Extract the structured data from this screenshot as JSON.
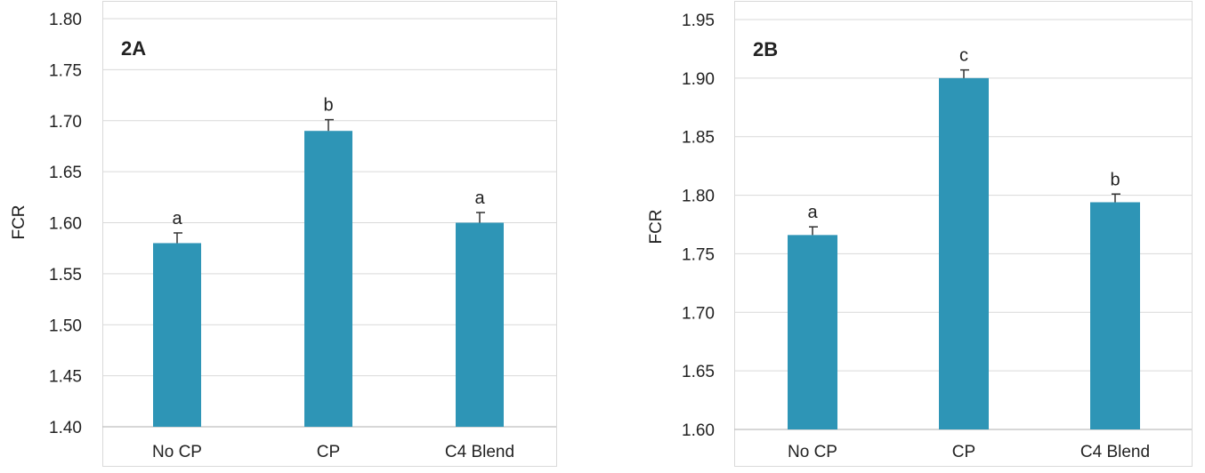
{
  "chart_data": [
    {
      "type": "bar",
      "panel_label": "2A",
      "ylabel": "FCR",
      "xlabel": "",
      "categories": [
        "No CP",
        "CP",
        "C4 Blend"
      ],
      "values": [
        1.58,
        1.69,
        1.6
      ],
      "errors": [
        0.01,
        0.011,
        0.01
      ],
      "significance": [
        "a",
        "b",
        "a"
      ],
      "ylim": [
        1.4,
        1.8
      ],
      "yticks": [
        "1.40",
        "1.45",
        "1.50",
        "1.55",
        "1.60",
        "1.65",
        "1.70",
        "1.75",
        "1.80"
      ],
      "bar_color": "#2e95b6",
      "grid": true,
      "legend": "none"
    },
    {
      "type": "bar",
      "panel_label": "2B",
      "ylabel": "FCR",
      "xlabel": "",
      "categories": [
        "No CP",
        "CP",
        "C4 Blend"
      ],
      "values": [
        1.766,
        1.9,
        1.794
      ],
      "errors": [
        0.007,
        0.007,
        0.007
      ],
      "significance": [
        "a",
        "c",
        "b"
      ],
      "ylim": [
        1.6,
        1.95
      ],
      "yticks": [
        "1.60",
        "1.65",
        "1.70",
        "1.75",
        "1.80",
        "1.85",
        "1.90",
        "1.95"
      ],
      "bar_color": "#2e95b6",
      "grid": true,
      "legend": "none"
    }
  ]
}
